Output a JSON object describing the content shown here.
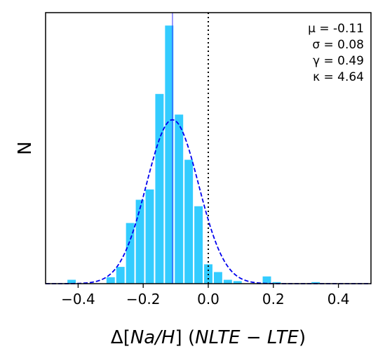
{
  "chart_data": {
    "type": "bar",
    "subtype": "histogram",
    "title": "",
    "xlabel": {
      "delta": "Δ",
      "quantity": "[Na/H]",
      "q_open": "[",
      "q_italic": "Na/H",
      "q_close": "]",
      "paren_open": " (",
      "expr": "NLTE − LTE",
      "paren_close": ")"
    },
    "ylabel": "N",
    "xlim": [
      -0.5,
      0.5
    ],
    "ylim": [
      0,
      1.05
    ],
    "xticks": [
      -0.4,
      -0.2,
      0.0,
      0.2,
      0.4
    ],
    "xtick_labels": [
      "−0.4",
      "−0.2",
      "0.0",
      "0.2",
      "0.4"
    ],
    "yticks": [],
    "bin_width": 0.03,
    "bins": [
      {
        "x": -0.42,
        "value": 0.015
      },
      {
        "x": -0.3,
        "value": 0.025
      },
      {
        "x": -0.27,
        "value": 0.065
      },
      {
        "x": -0.24,
        "value": 0.235
      },
      {
        "x": -0.21,
        "value": 0.325
      },
      {
        "x": -0.18,
        "value": 0.365
      },
      {
        "x": -0.15,
        "value": 0.735
      },
      {
        "x": -0.12,
        "value": 1.0
      },
      {
        "x": -0.09,
        "value": 0.655
      },
      {
        "x": -0.06,
        "value": 0.48
      },
      {
        "x": -0.03,
        "value": 0.3
      },
      {
        "x": 0.0,
        "value": 0.075
      },
      {
        "x": 0.03,
        "value": 0.045
      },
      {
        "x": 0.06,
        "value": 0.015
      },
      {
        "x": 0.09,
        "value": 0.01
      },
      {
        "x": 0.18,
        "value": 0.028
      },
      {
        "x": 0.21,
        "value": 0.006
      },
      {
        "x": 0.33,
        "value": 0.006
      }
    ],
    "fit": {
      "type": "gaussian",
      "mu": -0.11,
      "sigma": 0.08,
      "peak": 0.635,
      "style": "dashed",
      "color": "#0000ee"
    },
    "vlines": [
      {
        "x": -0.11,
        "style": "solid",
        "color": "#3333ff"
      },
      {
        "x": 0.0,
        "style": "dotted",
        "color": "#000000"
      }
    ],
    "stats": [
      {
        "label": "μ",
        "text": "μ = -0.11"
      },
      {
        "label": "σ",
        "text": "σ = 0.08"
      },
      {
        "label": "γ",
        "text": "γ = 0.49"
      },
      {
        "label": "κ",
        "text": "κ = 4.64"
      }
    ],
    "bar_color": "#33ccff",
    "grid": false
  }
}
